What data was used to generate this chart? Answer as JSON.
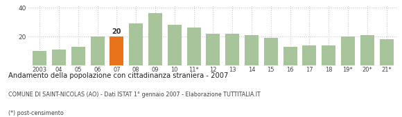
{
  "categories": [
    "2003",
    "04",
    "05",
    "06",
    "07",
    "08",
    "09",
    "10",
    "11*",
    "12",
    "13",
    "14",
    "15",
    "16",
    "17",
    "18",
    "19*",
    "20*",
    "21*"
  ],
  "values": [
    10,
    11,
    13,
    20,
    20,
    29,
    36,
    28,
    26,
    22,
    22,
    21,
    19,
    13,
    14,
    14,
    20,
    21,
    18
  ],
  "highlight_index": 4,
  "bar_color_normal": "#a8c49a",
  "bar_color_highlight": "#e8731a",
  "highlight_label": "20",
  "title": "Andamento della popolazione con cittadinanza straniera - 2007",
  "subtitle": "COMUNE DI SAINT-NICOLAS (AO) - Dati ISTAT 1° gennaio 2007 - Elaborazione TUTTITALIA.IT",
  "footnote": "(*) post-censimento",
  "ylim": [
    0,
    42
  ],
  "yticks": [
    20,
    40
  ],
  "grid_color": "#cccccc",
  "background_color": "#ffffff"
}
